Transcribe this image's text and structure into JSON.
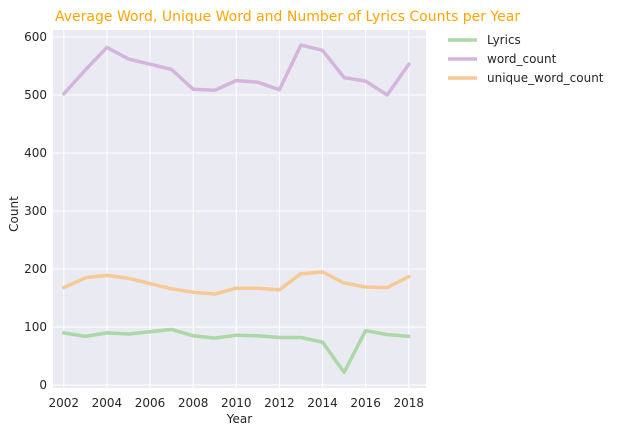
{
  "chart_data": {
    "type": "line",
    "title": "Average Word, Unique Word and Number of Lyrics Counts per Year",
    "xlabel": "Year",
    "ylabel": "Count",
    "x": [
      2002,
      2003,
      2004,
      2005,
      2006,
      2007,
      2008,
      2009,
      2010,
      2011,
      2012,
      2013,
      2014,
      2015,
      2016,
      2017,
      2018
    ],
    "x_ticks": [
      2002,
      2004,
      2006,
      2008,
      2010,
      2012,
      2014,
      2016,
      2018
    ],
    "y_ticks": [
      0,
      100,
      200,
      300,
      400,
      500,
      600
    ],
    "xlim": [
      2001.5,
      2018.8
    ],
    "ylim": [
      -5,
      612
    ],
    "grid": true,
    "legend_position": "outside-top-right",
    "series": [
      {
        "name": "Lyrics",
        "color": "#acd8a7",
        "values": [
          90,
          84,
          90,
          88,
          92,
          96,
          85,
          81,
          86,
          85,
          82,
          82,
          74,
          22,
          94,
          87,
          84
        ]
      },
      {
        "name": "word_count",
        "color": "#d5b4dd",
        "values": [
          502,
          543,
          582,
          562,
          553,
          544,
          510,
          508,
          525,
          522,
          509,
          586,
          577,
          530,
          524,
          500,
          553
        ]
      },
      {
        "name": "unique_word_count",
        "color": "#f6c995",
        "values": [
          168,
          185,
          189,
          184,
          175,
          166,
          160,
          157,
          167,
          167,
          164,
          192,
          195,
          176,
          169,
          168,
          187
        ]
      }
    ]
  },
  "colors": {
    "title": "#ffa500",
    "plot_background": "#eaeaf2",
    "grid": "#ffffff"
  }
}
